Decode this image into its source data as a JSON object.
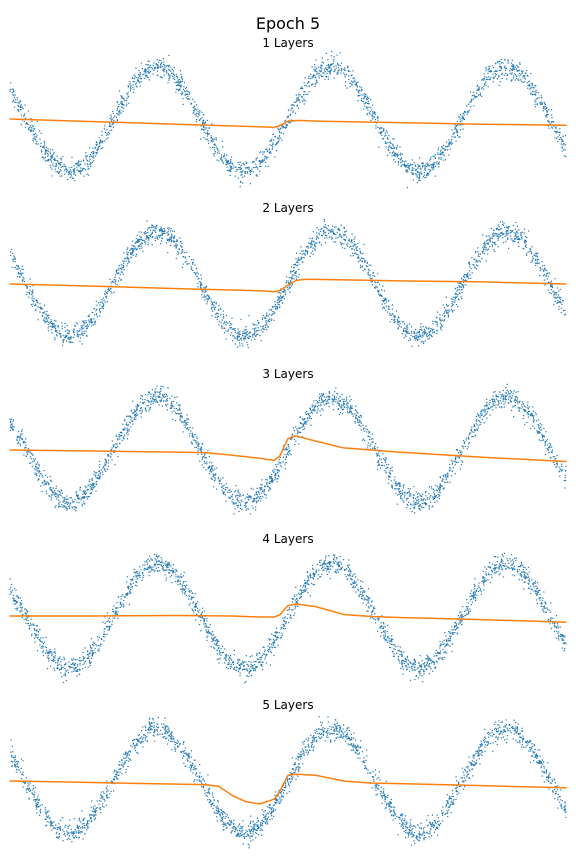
{
  "figure": {
    "title": "Epoch 5"
  },
  "colors": {
    "scatter": "#1f77b4",
    "line": "#ff7f0e",
    "background": "#ffffff"
  },
  "chart_data": [
    {
      "type": "scatter",
      "title": "1 Layers",
      "xlabel": "",
      "ylabel": "",
      "axes_visible": false,
      "scatter_series": {
        "function": "sin(x)",
        "x_range": [
          -10,
          10
        ],
        "noise": 0.1,
        "approx_points": 2000
      },
      "line_series": {
        "x": [
          -10,
          -7,
          -4,
          -1,
          -0.5,
          -0.3,
          0,
          0.3,
          0.5,
          1,
          4,
          7,
          10
        ],
        "y": [
          0.0,
          -0.05,
          -0.1,
          -0.15,
          -0.16,
          -0.13,
          -0.04,
          -0.03,
          -0.03,
          -0.04,
          -0.07,
          -0.1,
          -0.12
        ]
      },
      "ylim": [
        -1.3,
        1.3
      ],
      "grid": false
    },
    {
      "type": "scatter",
      "title": "2 Layers",
      "xlabel": "",
      "ylabel": "",
      "axes_visible": false,
      "scatter_series": {
        "function": "sin(x)",
        "x_range": [
          -10,
          10
        ],
        "noise": 0.1,
        "approx_points": 2000
      },
      "line_series": {
        "x": [
          -10,
          -7,
          -4,
          -1,
          -0.5,
          -0.3,
          0,
          0.3,
          0.6,
          1,
          4,
          7,
          10
        ],
        "y": [
          0.0,
          -0.04,
          -0.09,
          -0.13,
          -0.15,
          -0.13,
          -0.02,
          0.07,
          0.09,
          0.09,
          0.06,
          0.04,
          0.0
        ]
      },
      "ylim": [
        -1.3,
        1.3
      ],
      "grid": false
    },
    {
      "type": "scatter",
      "title": "3 Layers",
      "xlabel": "",
      "ylabel": "",
      "axes_visible": false,
      "scatter_series": {
        "function": "sin(x)",
        "x_range": [
          -10,
          10
        ],
        "noise": 0.1,
        "approx_points": 2000
      },
      "line_series": {
        "x": [
          -10,
          -7,
          -4,
          -3,
          -2,
          -1,
          -0.5,
          -0.3,
          0,
          0.3,
          1,
          2,
          4,
          7,
          10
        ],
        "y": [
          0.0,
          -0.02,
          -0.04,
          -0.05,
          -0.1,
          -0.16,
          -0.2,
          -0.12,
          0.22,
          0.27,
          0.17,
          0.04,
          -0.04,
          -0.14,
          -0.22
        ]
      },
      "ylim": [
        -1.3,
        1.3
      ],
      "grid": false
    },
    {
      "type": "scatter",
      "title": "4 Layers",
      "xlabel": "",
      "ylabel": "",
      "axes_visible": false,
      "scatter_series": {
        "function": "sin(x)",
        "x_range": [
          -10,
          10
        ],
        "noise": 0.1,
        "approx_points": 2000
      },
      "line_series": {
        "x": [
          -10,
          -7,
          -4,
          -2,
          -1,
          -0.5,
          -0.3,
          0,
          0.3,
          1,
          2,
          3,
          4,
          7,
          10
        ],
        "y": [
          0.0,
          0.0,
          0.01,
          0.0,
          -0.02,
          -0.02,
          0.02,
          0.2,
          0.23,
          0.18,
          0.03,
          -0.01,
          -0.03,
          -0.07,
          -0.12
        ]
      },
      "ylim": [
        -1.3,
        1.3
      ],
      "grid": false
    },
    {
      "type": "scatter",
      "title": "5 Layers",
      "xlabel": "",
      "ylabel": "",
      "axes_visible": false,
      "scatter_series": {
        "function": "sin(x)",
        "x_range": [
          -10,
          10
        ],
        "noise": 0.1,
        "approx_points": 2000
      },
      "line_series": {
        "x": [
          -10,
          -7,
          -4,
          -3,
          -2.5,
          -2,
          -1.5,
          -1,
          -0.5,
          -0.3,
          0,
          0.3,
          1,
          2,
          3,
          4,
          7,
          10
        ],
        "y": [
          0.0,
          -0.03,
          -0.06,
          -0.07,
          -0.1,
          -0.28,
          -0.4,
          -0.44,
          -0.35,
          -0.2,
          0.11,
          0.13,
          0.11,
          0.0,
          -0.04,
          -0.05,
          -0.09,
          -0.13
        ]
      },
      "ylim": [
        -1.3,
        1.3
      ],
      "grid": false
    }
  ]
}
